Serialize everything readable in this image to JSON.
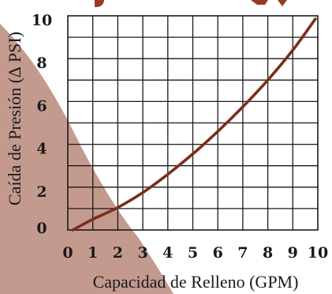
{
  "chart_data": {
    "type": "line",
    "xlabel": "Capacidad de Relleno (GPM)",
    "ylabel": "Caída de Presión (∆ PSI)",
    "xlim": [
      0,
      10
    ],
    "ylim": [
      0,
      10
    ],
    "x_ticks": [
      "0",
      "1",
      "2",
      "3",
      "4",
      "5",
      "6",
      "7",
      "8",
      "9",
      "10"
    ],
    "y_ticks": [
      "0",
      "2",
      "4",
      "6",
      "8",
      "10"
    ],
    "grid": true,
    "colors": {
      "line": "#7a2e1c",
      "decor": "#c49a8f",
      "title_fragment": "#9a3a22"
    },
    "series": [
      {
        "x": [
          0.2,
          1.0,
          2.0,
          3.0,
          4.0,
          5.0,
          6.0,
          7.0,
          8.0,
          9.0,
          9.9
        ],
        "y": [
          0.0,
          0.5,
          1.05,
          1.75,
          2.6,
          3.55,
          4.6,
          5.75,
          7.0,
          8.4,
          9.85
        ]
      }
    ]
  }
}
